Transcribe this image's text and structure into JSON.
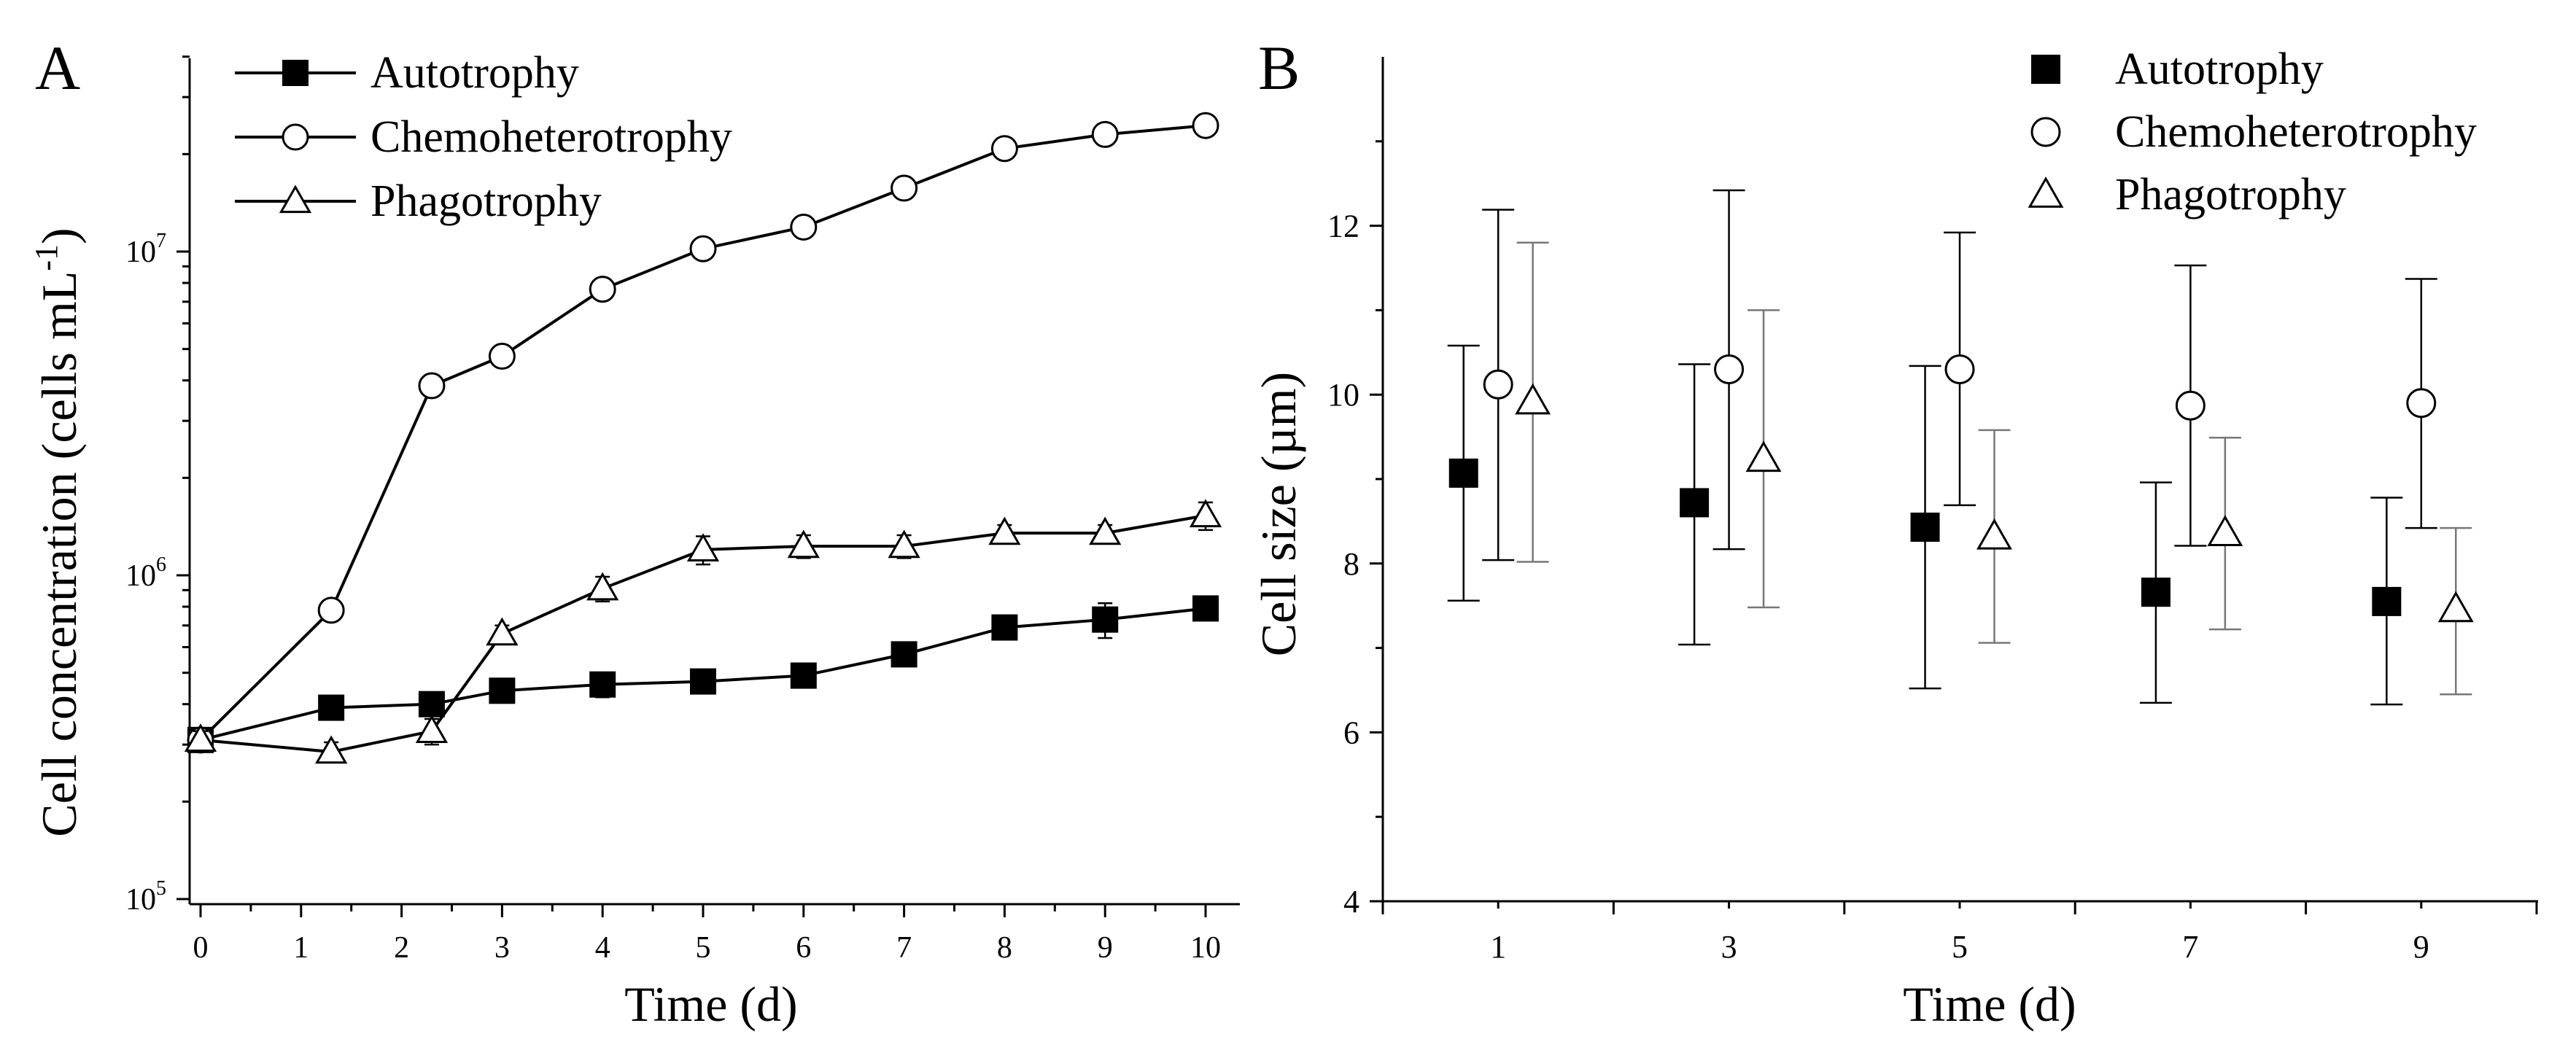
{
  "chart_data": [
    {
      "panel_label": "A",
      "type": "line",
      "x_scale": "linear",
      "y_scale": "log",
      "xlabel": "Time (d)",
      "ylabel": "Cell concentration (cells mL",
      "ylabel_exponent": "-1",
      "ylabel_close": ")",
      "xlim": [
        0,
        10
      ],
      "ylim": [
        100000,
        40000000
      ],
      "x_ticks": [
        {
          "value": 0,
          "label": "0"
        },
        {
          "value": 1,
          "label": "1"
        },
        {
          "value": 2,
          "label": "2"
        },
        {
          "value": 3,
          "label": "3"
        },
        {
          "value": 4,
          "label": "4"
        },
        {
          "value": 5,
          "label": "5"
        },
        {
          "value": 6,
          "label": "6"
        },
        {
          "value": 7,
          "label": "7"
        },
        {
          "value": 8,
          "label": "8"
        },
        {
          "value": 9,
          "label": "9"
        },
        {
          "value": 10,
          "label": "10"
        }
      ],
      "y_ticks": [
        {
          "value": 100000,
          "base": "10",
          "exp": "5"
        },
        {
          "value": 1000000,
          "base": "10",
          "exp": "6"
        },
        {
          "value": 10000000,
          "base": "10",
          "exp": "7"
        }
      ],
      "legend_position": "top-left",
      "series": [
        {
          "name": "Autotrophy",
          "marker": "square",
          "x": [
            0,
            1.3,
            2.3,
            3,
            4,
            5,
            6,
            7,
            8,
            9,
            10
          ],
          "y": [
            310000,
            390000,
            400000,
            440000,
            460000,
            470000,
            490000,
            570000,
            690000,
            730000,
            790000
          ],
          "err": [
            20000,
            20000,
            20000,
            25000,
            40000,
            30000,
            25000,
            30000,
            40000,
            90000,
            40000
          ]
        },
        {
          "name": "Chemoheterotrophy",
          "marker": "circle",
          "x": [
            0,
            1.3,
            2.3,
            3,
            4,
            5,
            6,
            7,
            8,
            9,
            10
          ],
          "y": [
            310000,
            780000,
            3850000,
            4750000,
            7650000,
            10200000,
            11900000,
            15700000,
            20800000,
            23000000,
            24500000
          ],
          "err": [
            20000,
            50000,
            200000,
            300000,
            500000,
            700000,
            700000,
            900000,
            1000000,
            1200000,
            1800000
          ]
        },
        {
          "name": "Phagotrophy",
          "marker": "triangle",
          "x": [
            0,
            1.3,
            2.3,
            3,
            4,
            5,
            6,
            7,
            8,
            9,
            10
          ],
          "y": [
            310000,
            285000,
            330000,
            660000,
            910000,
            1200000,
            1230000,
            1230000,
            1350000,
            1350000,
            1530000
          ],
          "err": [
            20000,
            20000,
            30000,
            40000,
            80000,
            120000,
            100000,
            100000,
            80000,
            80000,
            150000
          ]
        }
      ]
    },
    {
      "panel_label": "B",
      "type": "scatter",
      "xlabel": "Time (d)",
      "ylabel": "Cell size (µm)",
      "xlim": [
        0,
        10
      ],
      "ylim": [
        4,
        14
      ],
      "x_tick_labels": [
        "1",
        "3",
        "5",
        "7",
        "9"
      ],
      "x_tick_values": [
        1,
        3,
        5,
        7,
        9
      ],
      "x_boundaries": [
        0,
        2,
        4,
        6,
        8,
        10
      ],
      "y_ticks": [
        4,
        6,
        8,
        10,
        12
      ],
      "y_tick_labels": [
        "4",
        "6",
        "8",
        "10",
        "12"
      ],
      "legend_position": "top-right",
      "series": [
        {
          "name": "Autotrophy",
          "marker": "square",
          "offset": -0.3,
          "x": [
            1,
            3,
            5,
            7,
            9
          ],
          "y": [
            9.07,
            8.72,
            8.43,
            7.66,
            7.55
          ],
          "low": [
            7.56,
            7.04,
            6.52,
            6.35,
            6.33
          ],
          "high": [
            10.58,
            10.36,
            10.34,
            8.96,
            8.78
          ]
        },
        {
          "name": "Chemoheterotrophy",
          "marker": "circle",
          "offset": 0,
          "x": [
            1,
            3,
            5,
            7,
            9
          ],
          "y": [
            10.12,
            10.3,
            10.3,
            9.87,
            9.9
          ],
          "low": [
            8.04,
            8.17,
            8.69,
            8.21,
            8.42
          ],
          "high": [
            12.19,
            12.42,
            11.92,
            11.53,
            11.37
          ]
        },
        {
          "name": "Phagotrophy",
          "marker": "triangle",
          "offset": 0.3,
          "x": [
            1,
            3,
            5,
            7,
            9
          ],
          "y": [
            9.92,
            9.24,
            8.32,
            8.36,
            7.46
          ],
          "low": [
            8.02,
            7.48,
            7.06,
            7.22,
            6.45
          ],
          "high": [
            11.8,
            11.0,
            9.58,
            9.49,
            8.42
          ]
        }
      ]
    }
  ]
}
